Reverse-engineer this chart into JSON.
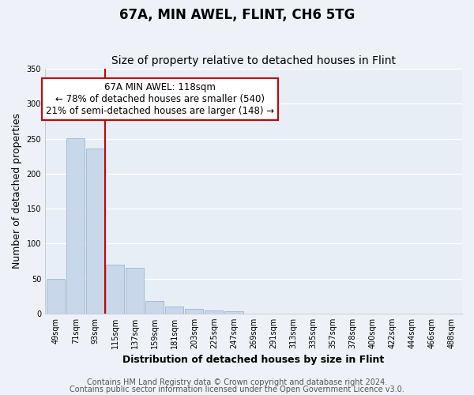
{
  "title": "67A, MIN AWEL, FLINT, CH6 5TG",
  "subtitle": "Size of property relative to detached houses in Flint",
  "xlabel": "Distribution of detached houses by size in Flint",
  "ylabel": "Number of detached properties",
  "bar_labels": [
    "49sqm",
    "71sqm",
    "93sqm",
    "115sqm",
    "137sqm",
    "159sqm",
    "181sqm",
    "203sqm",
    "225sqm",
    "247sqm",
    "269sqm",
    "291sqm",
    "313sqm",
    "335sqm",
    "357sqm",
    "378sqm",
    "400sqm",
    "422sqm",
    "444sqm",
    "466sqm",
    "488sqm"
  ],
  "bar_values": [
    50,
    251,
    236,
    70,
    65,
    18,
    10,
    6,
    4,
    3,
    0,
    0,
    0,
    0,
    0,
    0,
    0,
    0,
    0,
    0,
    0
  ],
  "bar_color": "#c8d8ea",
  "bar_edge_color": "#9ab8cc",
  "vline_index": 3,
  "vline_color": "#cc0000",
  "ylim": [
    0,
    350
  ],
  "yticks": [
    0,
    50,
    100,
    150,
    200,
    250,
    300,
    350
  ],
  "annotation_box_text": "67A MIN AWEL: 118sqm\n← 78% of detached houses are smaller (540)\n21% of semi-detached houses are larger (148) →",
  "footer_line1": "Contains HM Land Registry data © Crown copyright and database right 2024.",
  "footer_line2": "Contains public sector information licensed under the Open Government Licence v3.0.",
  "background_color": "#eef2f8",
  "plot_bg_color": "#e8eef6",
  "grid_color": "#ffffff",
  "title_fontsize": 12,
  "subtitle_fontsize": 10,
  "axis_label_fontsize": 9,
  "tick_fontsize": 7,
  "annotation_fontsize": 8.5,
  "footer_fontsize": 7
}
